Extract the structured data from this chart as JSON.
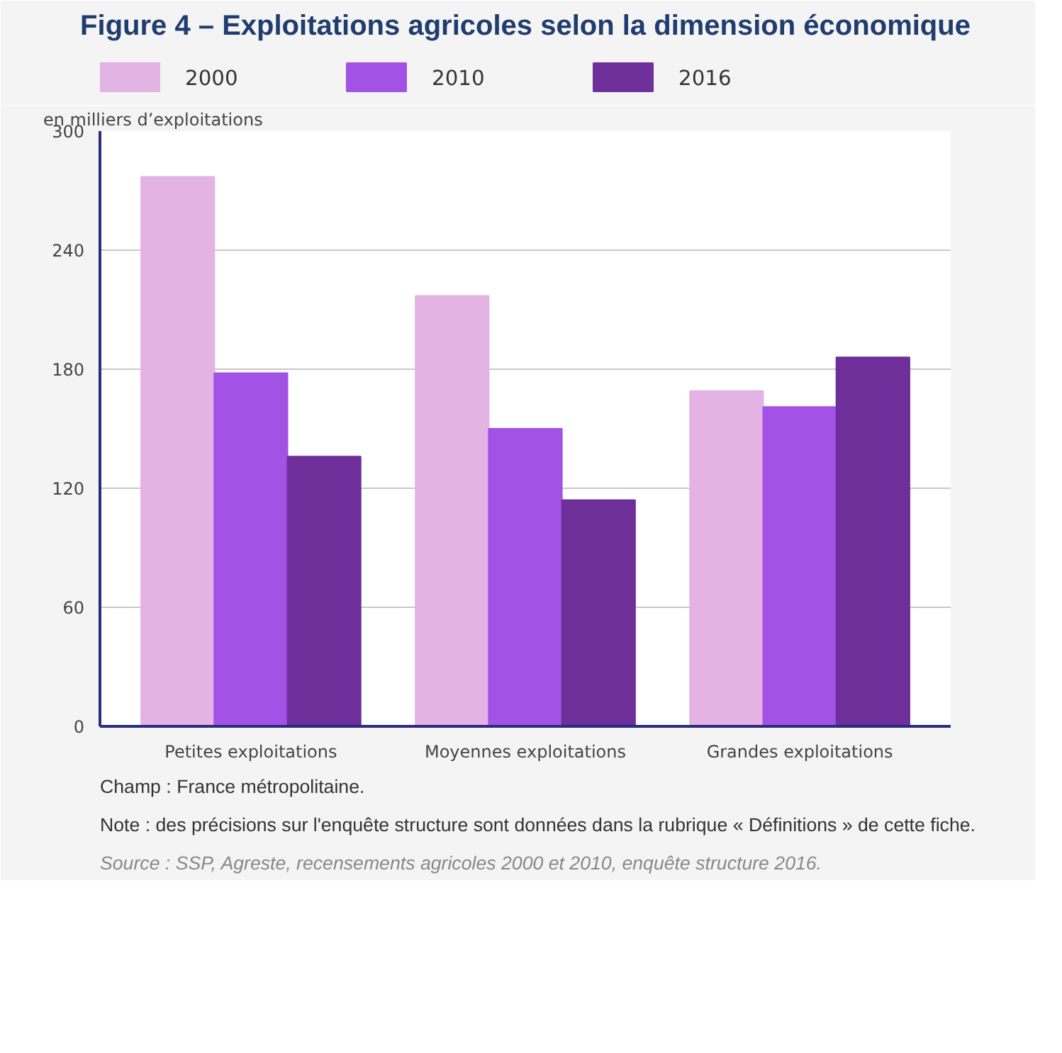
{
  "chart_data": {
    "type": "bar",
    "title": "Figure 4 – Exploitations agricoles selon la dimension économique",
    "ylabel": "en milliers d’exploitations",
    "categories": [
      "Petites exploitations",
      "Moyennes exploitations",
      "Grandes exploitations"
    ],
    "series": [
      {
        "name": "2000",
        "color": "#e3b3e3",
        "values": [
          277,
          217,
          169
        ]
      },
      {
        "name": "2010",
        "color": "#a352e6",
        "values": [
          178,
          150,
          161
        ]
      },
      {
        "name": "2016",
        "color": "#6e2f9a",
        "values": [
          136,
          114,
          186
        ]
      }
    ],
    "ylim": [
      0,
      300
    ],
    "yticks": [
      0,
      60,
      120,
      180,
      240,
      300
    ],
    "grid": "y",
    "legend": "top",
    "annotations": [
      "Champ : France métropolitaine.",
      "Note : des précisions sur l'enquête structure sont données dans la rubrique « Définitions » de cette fiche.",
      "Source : SSP, Agreste, recensements agricoles 2000 et 2010, enquête structure 2016."
    ]
  }
}
